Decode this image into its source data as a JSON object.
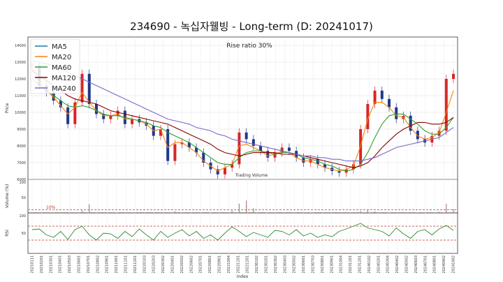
{
  "chart_data": {
    "type": "line",
    "title": "234690 - 녹십자웰빙 - Long-term (D: 20241017)",
    "annotation": "Rise ratio 30%",
    "price_panel": {
      "ylabel": "Price",
      "ylim": [
        6000,
        14500
      ],
      "yticks": [
        "14000",
        "13000",
        "12000",
        "11000",
        "10000",
        "9000",
        "8000",
        "7000",
        "6000"
      ],
      "legend": [
        "MA5",
        "MA20",
        "MA60",
        "MA120",
        "MA240"
      ],
      "legend_colors": [
        "#1f77b4",
        "#ff7f0e",
        "#2ca02c",
        "#8b0000",
        "#7b68c8"
      ],
      "candle_up_color": "#d62728",
      "candle_down_color": "#1f3a8a",
      "x_points": 60,
      "close": [
        12800,
        11600,
        11200,
        10700,
        10300,
        9300,
        10600,
        12300,
        10500,
        9900,
        9600,
        9800,
        10100,
        9300,
        9600,
        9400,
        9200,
        8600,
        9000,
        7100,
        8100,
        8200,
        7900,
        7600,
        7000,
        6600,
        6300,
        6700,
        6900,
        8800,
        8400,
        8000,
        7700,
        7300,
        7600,
        7900,
        7700,
        7300,
        7000,
        7200,
        6900,
        6700,
        6500,
        6400,
        6600,
        6900,
        9000,
        10500,
        11300,
        10800,
        10300,
        9600,
        9800,
        8900,
        8400,
        8200,
        8600,
        8900,
        12000,
        12300
      ],
      "series": [
        {
          "name": "MA20",
          "values": [
            12600,
            11800,
            11300,
            10900,
            10400,
            9900,
            10300,
            11200,
            10600,
            10100,
            9800,
            9800,
            9900,
            9600,
            9600,
            9500,
            9300,
            8900,
            9000,
            7900,
            8200,
            8200,
            7900,
            7600,
            7100,
            6800,
            6500,
            6700,
            6900,
            8000,
            8100,
            7900,
            7700,
            7400,
            7500,
            7700,
            7600,
            7300,
            7100,
            7100,
            6900,
            6700,
            6600,
            6500,
            6600,
            6800,
            8000,
            9600,
            10600,
            10600,
            10300,
            9800,
            9700,
            9100,
            8600,
            8400,
            8500,
            8800,
            10000,
            11300
          ]
        },
        {
          "name": "MA60",
          "values": [
            12000,
            11600,
            11300,
            11000,
            10700,
            10400,
            10300,
            10400,
            10300,
            10100,
            9900,
            9800,
            9800,
            9700,
            9600,
            9500,
            9400,
            9200,
            9100,
            8800,
            8600,
            8400,
            8200,
            7900,
            7600,
            7300,
            7000,
            6900,
            6900,
            7300,
            7600,
            7700,
            7700,
            7600,
            7500,
            7600,
            7600,
            7500,
            7300,
            7200,
            7100,
            6900,
            6800,
            6600,
            6500,
            6600,
            6900,
            7600,
            8500,
            9300,
            9800,
            9900,
            9900,
            9600,
            9300,
            8900,
            8700,
            8700,
            9100,
            9700
          ]
        },
        {
          "name": "MA120",
          "values": [
            12500,
            12200,
            11900,
            11600,
            11300,
            11000,
            10800,
            10700,
            10600,
            10500,
            10300,
            10100,
            10000,
            9900,
            9800,
            9700,
            9600,
            9500,
            9400,
            9300,
            9100,
            8900,
            8700,
            8500,
            8300,
            8100,
            7800,
            7600,
            7500,
            7400,
            7500,
            7600,
            7600,
            7600,
            7600,
            7500,
            7500,
            7500,
            7400,
            7300,
            7200,
            7100,
            7000,
            6900,
            6800,
            6700,
            6800,
            7000,
            7400,
            7900,
            8300,
            8700,
            9000,
            9200,
            9400,
            9400,
            9300,
            9300,
            9400,
            9700
          ]
        },
        {
          "name": "MA240",
          "values": [
            13100,
            13000,
            12900,
            12800,
            12600,
            12400,
            12200,
            12000,
            11800,
            11600,
            11400,
            11200,
            11000,
            10800,
            10600,
            10400,
            10200,
            10000,
            9800,
            9600,
            9500,
            9400,
            9300,
            9100,
            9000,
            8900,
            8700,
            8600,
            8400,
            8300,
            8200,
            8100,
            8000,
            7900,
            7800,
            7700,
            7600,
            7500,
            7400,
            7400,
            7300,
            7300,
            7200,
            7200,
            7100,
            7100,
            7100,
            7200,
            7300,
            7500,
            7700,
            7900,
            8000,
            8100,
            8200,
            8300,
            8400,
            8500,
            8800,
            9100
          ]
        }
      ]
    },
    "volume_panel": {
      "ylabel": "Volume (%)",
      "annotation": "Trading Volume",
      "yticks": [
        "100",
        "50"
      ],
      "threshold_label": "10%",
      "threshold": 10,
      "ylim": [
        0,
        100
      ],
      "values": [
        2,
        1,
        0,
        1,
        0,
        0,
        1,
        8,
        28,
        1,
        0,
        0,
        1,
        0,
        1,
        0,
        0,
        0,
        0,
        0,
        5,
        0,
        0,
        0,
        0,
        1,
        0,
        0,
        8,
        30,
        40,
        15,
        0,
        1,
        0,
        0,
        0,
        0,
        0,
        1,
        0,
        0,
        0,
        0,
        0,
        0,
        6,
        9,
        5,
        2,
        1,
        0,
        0,
        0,
        1,
        0,
        0,
        4,
        30,
        12
      ]
    },
    "rsi_panel": {
      "ylabel": "RSI",
      "yticks": [
        "100",
        "50"
      ],
      "ylim": [
        0,
        100
      ],
      "upper": 70,
      "lower": 30,
      "values": [
        60,
        62,
        45,
        38,
        55,
        32,
        60,
        70,
        45,
        30,
        50,
        48,
        35,
        55,
        40,
        62,
        45,
        30,
        55,
        38,
        50,
        60,
        42,
        55,
        35,
        45,
        30,
        50,
        68,
        55,
        40,
        52,
        45,
        38,
        58,
        55,
        45,
        60,
        42,
        50,
        38,
        45,
        40,
        55,
        62,
        70,
        78,
        65,
        60,
        55,
        42,
        65,
        48,
        35,
        55,
        60,
        45,
        62,
        72,
        58
      ]
    },
    "x_label": "Index",
    "x_ticks": [
      "20210111",
      "20210201",
      "20210301",
      "20210401",
      "20210503",
      "20210601",
      "20210701",
      "20210802",
      "20210901",
      "20211001",
      "20211101",
      "20211201",
      "20220103",
      "20220203",
      "20220302",
      "20220401",
      "20220502",
      "20220602",
      "20220701",
      "20220801",
      "20220901",
      "20221004",
      "20221101",
      "20221201",
      "20230102",
      "20230201",
      "20230302",
      "20230403",
      "20230502",
      "20230601",
      "20230703",
      "20230801",
      "20230901",
      "20231004",
      "20231101",
      "20231201",
      "20240102",
      "20240201",
      "20240304",
      "20240402",
      "20240502",
      "20240603",
      "20240701",
      "20240801",
      "20240902",
      "20241002"
    ]
  }
}
